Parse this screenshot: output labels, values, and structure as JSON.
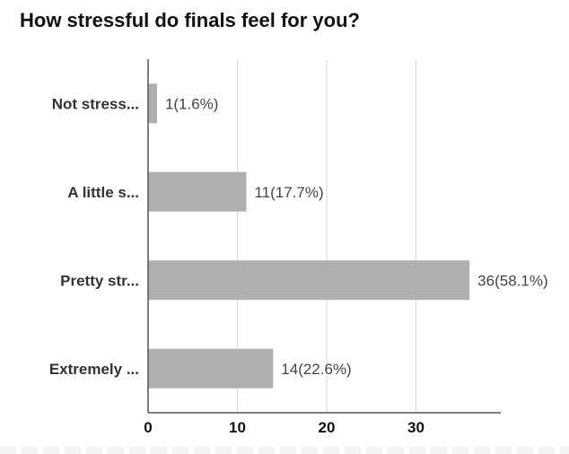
{
  "chart_data": {
    "type": "bar",
    "orientation": "horizontal",
    "title": "How stressful do finals feel for you?",
    "categories": [
      "Not stress...",
      "A little s...",
      "Pretty str...",
      "Extremely ..."
    ],
    "values": [
      1,
      11,
      36,
      14
    ],
    "data_labels": [
      "1(1.6%)",
      "11(17.7%)",
      "36(58.1%)",
      "14(22.6%)"
    ],
    "xticks": [
      0,
      10,
      20,
      30
    ],
    "xlim": [
      0,
      39.5
    ],
    "grid": true,
    "legend": "none",
    "bar_color": "#b0b0b0",
    "grid_color": "#d8d8d8",
    "axis_color": "#555555"
  }
}
